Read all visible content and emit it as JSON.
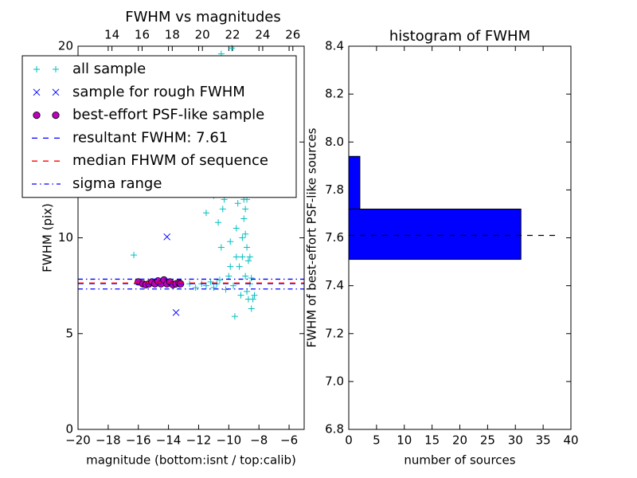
{
  "chart_data": [
    {
      "type": "scatter",
      "title": "FWHM vs magnitudes",
      "xlabel": "magnitude (bottom:isnt / top:calib)",
      "ylabel": "FWHM (pix)",
      "xlim": [
        -20,
        -5
      ],
      "xticks": [
        {
          "value": -20,
          "label": "−20"
        },
        {
          "value": -18,
          "label": "−18"
        },
        {
          "value": -16,
          "label": "−16"
        },
        {
          "value": -14,
          "label": "−14"
        },
        {
          "value": -12,
          "label": "−12"
        },
        {
          "value": -10,
          "label": "−10"
        },
        {
          "value": -8,
          "label": "−8"
        },
        {
          "value": -6,
          "label": "−6"
        }
      ],
      "x2lim": [
        11.75,
        26.75
      ],
      "x2ticks": [
        14,
        16,
        18,
        20,
        22,
        24,
        26
      ],
      "ylim": [
        0,
        20
      ],
      "yticks": [
        0,
        5,
        10,
        15,
        20
      ],
      "legend": "upper left",
      "series": [
        {
          "name": "all sample",
          "color": "#00bfbf",
          "marker": "+",
          "x": [
            -16.3,
            -14.0,
            -13.3,
            -12.6,
            -12.2,
            -11.8,
            -11.5,
            -11.2,
            -11.5,
            -11.0,
            -10.8,
            -10.6,
            -10.5,
            -10.4,
            -10.3,
            -10.2,
            -10.0,
            -9.9,
            -9.8,
            -9.7,
            -9.6,
            -9.5,
            -9.4,
            -9.3,
            -9.3,
            -9.2,
            -9.1,
            -9.0,
            -9.0,
            -8.9,
            -8.9,
            -8.8,
            -8.8,
            -8.7,
            -8.7,
            -8.6,
            -8.6,
            -8.5,
            -8.5,
            -8.4,
            -8.3,
            -10.5,
            -9.8,
            -10.2,
            -9.4,
            -9.0,
            -8.8,
            -9.2,
            -10.0,
            -9.6,
            -11.0,
            -10.7,
            -9.1,
            -8.9,
            -9.5,
            -9.9
          ],
          "values": [
            9.1,
            7.7,
            7.5,
            7.6,
            7.4,
            7.6,
            7.5,
            7.7,
            11.3,
            7.4,
            7.6,
            7.8,
            9.5,
            11.5,
            12.0,
            7.3,
            8.0,
            9.8,
            12.5,
            7.5,
            5.9,
            10.5,
            11.8,
            8.5,
            13.0,
            7.0,
            9.0,
            12.0,
            11.0,
            10.2,
            8.0,
            9.5,
            7.2,
            8.8,
            6.8,
            9.0,
            7.6,
            6.3,
            7.9,
            6.8,
            7.0,
            19.6,
            19.9,
            18.5,
            16.5,
            14.5,
            12.0,
            15.0,
            14.0,
            13.5,
            12.2,
            10.8,
            10.0,
            11.5,
            9.0,
            8.5
          ]
        },
        {
          "name": "sample for rough FWHM",
          "color": "#0000ff",
          "marker": "x",
          "x": [
            -14.1,
            -13.5,
            -15.0
          ],
          "values": [
            10.05,
            6.1,
            7.6
          ]
        },
        {
          "name": "best-effort PSF-like sample",
          "color": "#bf00bf",
          "marker": "o",
          "x": [
            -16.0,
            -15.7,
            -15.5,
            -15.3,
            -15.1,
            -14.9,
            -14.7,
            -14.5,
            -14.3,
            -14.1,
            -13.9,
            -13.7,
            -13.5,
            -13.3,
            -13.2
          ],
          "values": [
            7.7,
            7.6,
            7.55,
            7.6,
            7.7,
            7.6,
            7.75,
            7.6,
            7.8,
            7.6,
            7.7,
            7.55,
            7.6,
            7.65,
            7.6
          ]
        },
        {
          "name": "resultant FWHM: 7.61",
          "color": "#0000ff",
          "linestyle": "dashed",
          "values": [
            7.61
          ]
        },
        {
          "name": "median FHWM of sequence",
          "color": "#ff0000",
          "linestyle": "dashed",
          "values": [
            7.64
          ]
        },
        {
          "name": "sigma range",
          "color": "#0000ff",
          "linestyle": "dashdot",
          "values": [
            7.33,
            7.84
          ]
        }
      ]
    },
    {
      "type": "histogram",
      "orientation": "horizontal",
      "title": "histogram of FWHM",
      "xlabel": "number of sources",
      "ylabel": "FWHM of best-effort PSF-like sources",
      "bins": [
        7.51,
        7.72,
        7.94
      ],
      "values": [
        31,
        2
      ],
      "color": "#0000ff",
      "xlim": [
        0,
        40
      ],
      "xticks": [
        0,
        5,
        10,
        15,
        20,
        25,
        30,
        35,
        40
      ],
      "ylim": [
        6.8,
        8.4
      ],
      "yticks": [
        6.8,
        {
          "value": 7,
          "label": "7.0"
        },
        7.2,
        7.4,
        7.6,
        7.8,
        {
          "value": 8,
          "label": "8.0"
        },
        8.2,
        8.4
      ],
      "hline": {
        "value": 7.61,
        "color": "#000000",
        "linestyle": "dashed"
      }
    }
  ]
}
